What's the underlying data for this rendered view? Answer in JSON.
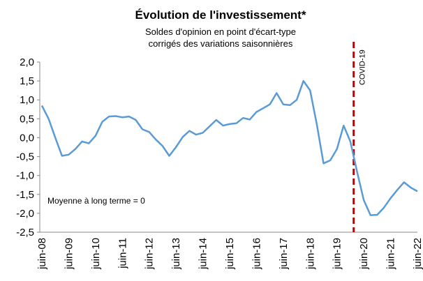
{
  "chart_data": {
    "type": "line",
    "title": "Évolution de l'investissement*",
    "subtitle": [
      "Soldes d'opinion en point d'écart-type",
      "corrigés des variations saisonnières"
    ],
    "annotations": [
      "COVID-19",
      "Moyenne à long terme = 0"
    ],
    "categories": [
      "juin-08",
      null,
      null,
      null,
      "juin-09",
      null,
      null,
      null,
      "juin-10",
      null,
      null,
      null,
      "juin-11",
      null,
      null,
      null,
      "juin-12",
      null,
      null,
      null,
      "juin-13",
      null,
      null,
      null,
      "juin-14",
      null,
      null,
      null,
      "juin-15",
      null,
      null,
      null,
      "juin-16",
      null,
      null,
      null,
      "juin-17",
      null,
      null,
      null,
      "juin-18",
      null,
      null,
      null,
      "juin-19",
      null,
      null,
      null,
      "juin-20",
      null,
      null,
      null,
      "juin-21",
      null,
      null,
      null,
      "juin-22"
    ],
    "series": [
      {
        "name": "Investissement",
        "color": "#5b9bd5",
        "values": [
          0.85,
          0.5,
          0.0,
          -0.48,
          -0.45,
          -0.3,
          -0.1,
          -0.15,
          0.05,
          0.42,
          0.56,
          0.57,
          0.54,
          0.56,
          0.47,
          0.22,
          0.15,
          -0.05,
          -0.22,
          -0.48,
          -0.25,
          0.02,
          0.18,
          0.08,
          0.13,
          0.3,
          0.47,
          0.32,
          0.36,
          0.38,
          0.52,
          0.48,
          0.68,
          0.78,
          0.88,
          1.18,
          0.88,
          0.86,
          1.0,
          1.5,
          1.25,
          0.35,
          -0.68,
          -0.6,
          -0.3,
          0.32,
          -0.1,
          -0.9,
          -1.65,
          -2.05,
          -2.04,
          -1.85,
          -1.6,
          -1.38,
          -1.18,
          -1.32,
          -1.42
        ]
      }
    ],
    "ylim": [
      -2.5,
      2.0
    ],
    "yticks": [
      {
        "value": -2.5,
        "label": "-2,5"
      },
      {
        "value": -2.0,
        "label": "-2,0"
      },
      {
        "value": -1.5,
        "label": "-1,5"
      },
      {
        "value": -1.0,
        "label": "-1,0"
      },
      {
        "value": -0.5,
        "label": "-0,5"
      },
      {
        "value": 0.0,
        "label": "0,0"
      },
      {
        "value": 0.5,
        "label": "0,5"
      },
      {
        "value": 1.0,
        "label": "1,0"
      },
      {
        "value": 1.5,
        "label": "1,5"
      },
      {
        "value": 2.0,
        "label": "2,0"
      }
    ],
    "grid": false,
    "event_color": "#c00000"
  }
}
